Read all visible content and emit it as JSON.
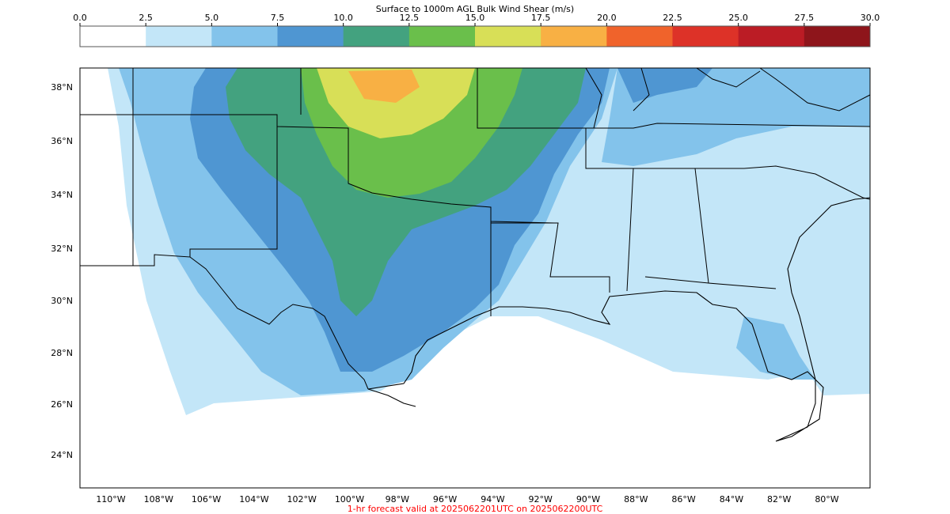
{
  "colorbar": {
    "title": "Surface to 1000m AGL Bulk Wind Shear (m/s)",
    "ticks": [
      "0.0",
      "2.5",
      "5.0",
      "7.5",
      "10.0",
      "12.5",
      "15.0",
      "17.5",
      "20.0",
      "22.5",
      "25.0",
      "27.5",
      "30.0"
    ],
    "colors": [
      "#ffffff",
      "#c3e6f8",
      "#83c3eb",
      "#4f96d2",
      "#43a27f",
      "#6abf4b",
      "#d8df57",
      "#f8b044",
      "#f0632b",
      "#dd3228",
      "#bb1c25",
      "#8e151b"
    ]
  },
  "map": {
    "lat_labels": [
      "38°N",
      "36°N",
      "34°N",
      "32°N",
      "30°N",
      "28°N",
      "26°N",
      "24°N"
    ],
    "lon_labels": [
      "110°W",
      "108°W",
      "106°W",
      "104°W",
      "102°W",
      "100°W",
      "98°W",
      "96°W",
      "94°W",
      "92°W",
      "90°W",
      "88°W",
      "86°W",
      "84°W",
      "82°W",
      "80°W"
    ]
  },
  "footer": {
    "forecast_text": "1-hr forecast valid at 2025062201UTC on 2025062200UTC",
    "text_color": "#ff0000"
  }
}
